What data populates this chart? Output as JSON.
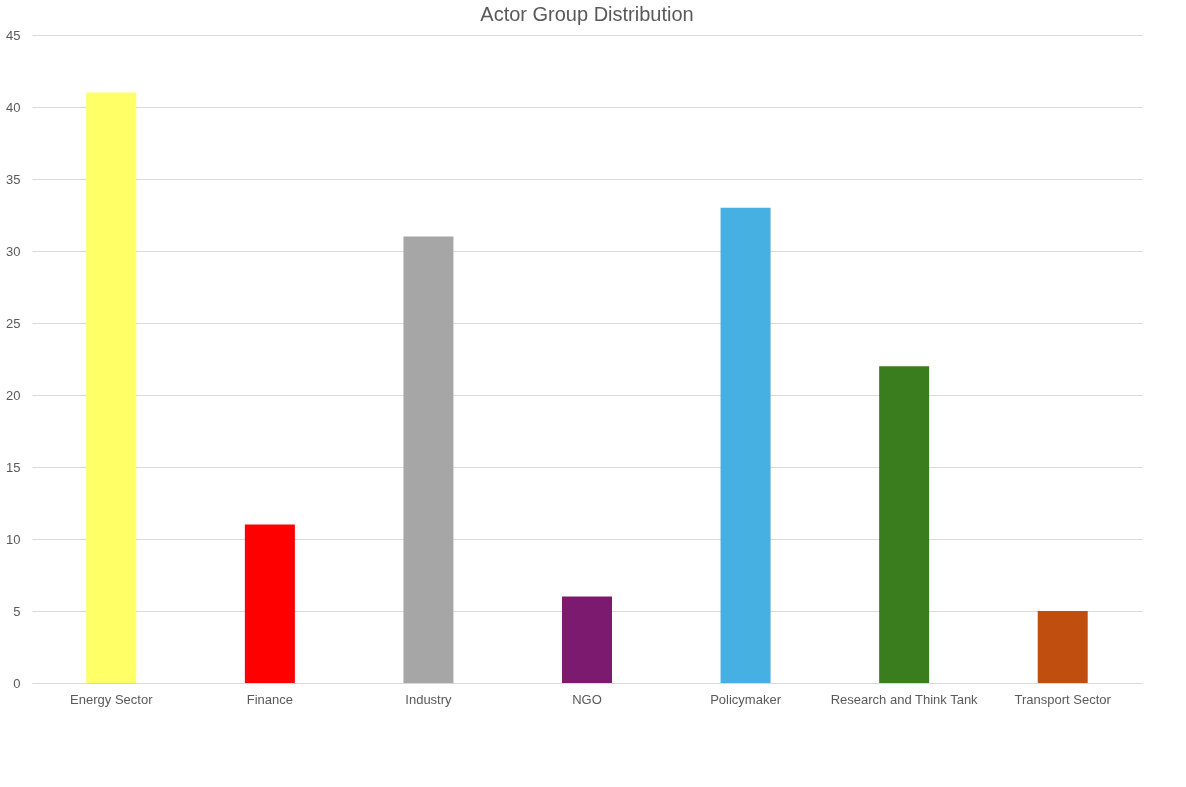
{
  "chart_data": {
    "type": "bar",
    "title": "Actor Group Distribution",
    "categories": [
      "Energy Sector",
      "Finance",
      "Industry",
      "NGO",
      "Policymaker",
      "Research and Think Tank",
      "Transport Sector"
    ],
    "values": [
      41,
      11,
      31,
      6,
      33,
      22,
      5
    ],
    "colors": [
      "#ffff66",
      "#ff0000",
      "#a6a6a6",
      "#7b1a6e",
      "#45b0e1",
      "#3a7d1f",
      "#c04f0f"
    ],
    "ylim": [
      0,
      45
    ],
    "yticks": [
      0,
      5,
      10,
      15,
      20,
      25,
      30,
      35,
      40,
      45
    ],
    "grid": "y",
    "legend": false
  }
}
